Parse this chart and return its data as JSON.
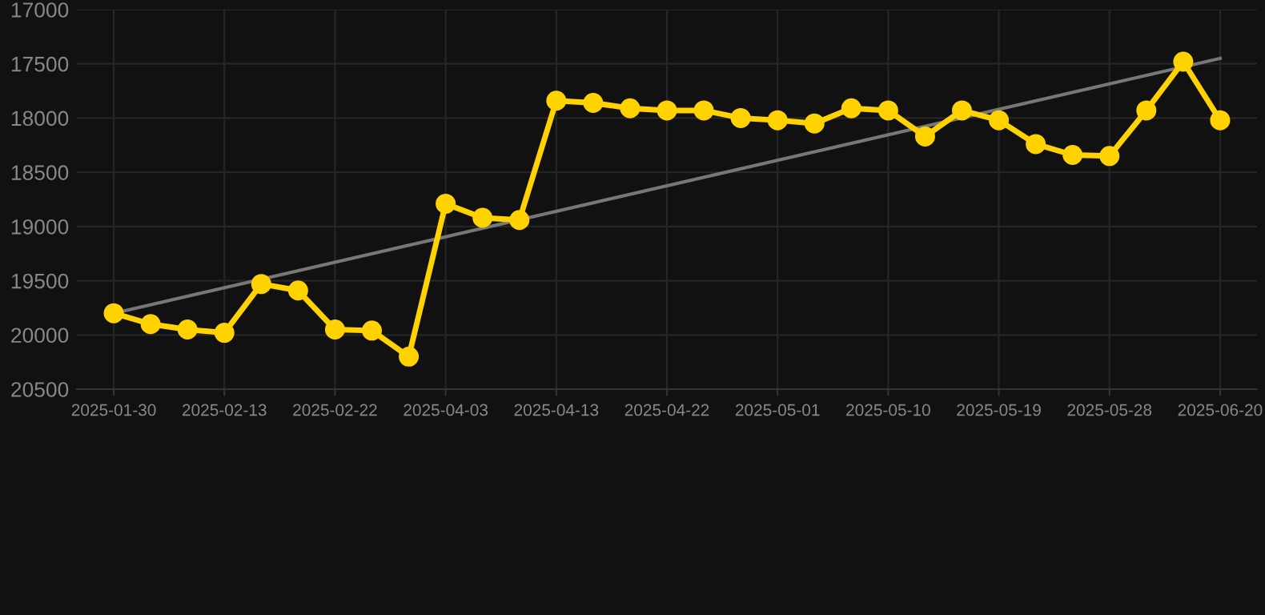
{
  "chart_data": {
    "type": "line",
    "categories": [
      "2025-01-30",
      null,
      null,
      "2025-02-13",
      null,
      null,
      "2025-02-22",
      null,
      null,
      "2025-04-03",
      null,
      null,
      "2025-04-13",
      null,
      null,
      "2025-04-22",
      null,
      null,
      "2025-05-01",
      null,
      null,
      "2025-05-10",
      null,
      null,
      "2025-05-19",
      null,
      null,
      "2025-05-28",
      null,
      null,
      "2025-06-20"
    ],
    "series": [
      {
        "color": "#ffd200",
        "marker": "circle",
        "values": [
          19800,
          19900,
          19950,
          19980,
          19530,
          19590,
          19950,
          19960,
          20200,
          18790,
          18920,
          18940,
          17840,
          17860,
          17910,
          17930,
          17930,
          18000,
          18020,
          18050,
          17910,
          17930,
          18170,
          17930,
          18020,
          18240,
          18340,
          18350,
          17930,
          17480,
          18020
        ]
      },
      {
        "color": "#777777",
        "marker": "none",
        "values": [
          19800,
          null,
          null,
          null,
          null,
          null,
          null,
          null,
          null,
          null,
          null,
          null,
          null,
          null,
          null,
          null,
          null,
          null,
          null,
          null,
          null,
          null,
          null,
          null,
          null,
          null,
          null,
          null,
          null,
          null,
          17450
        ]
      }
    ],
    "ylim": [
      20500,
      17000
    ],
    "yticks": [
      17000,
      17500,
      18000,
      18500,
      19000,
      19500,
      20000,
      20500
    ],
    "grid": true,
    "line_style": "solid"
  }
}
